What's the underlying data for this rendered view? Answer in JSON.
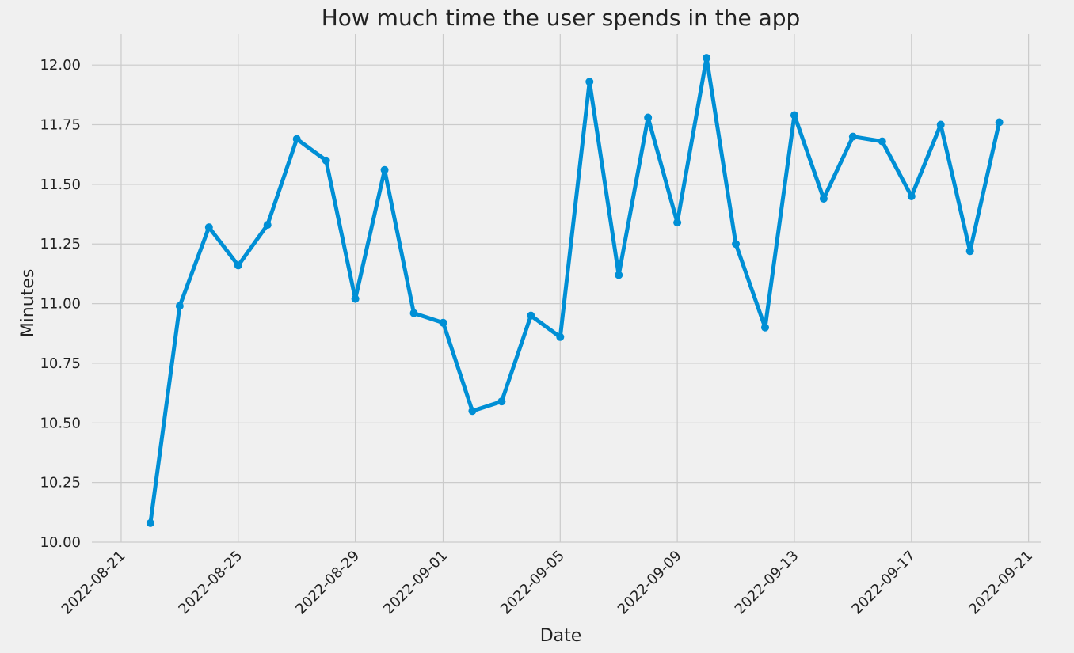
{
  "chart_data": {
    "type": "line",
    "title": "How much time the user spends in the app",
    "xlabel": "Date",
    "ylabel": "Minutes",
    "xlim": [
      "2022-08-20T00:00",
      "2022-09-21T10:00"
    ],
    "ylim": [
      10.0,
      12.13
    ],
    "x_ticks": [
      "2022-08-21",
      "2022-08-25",
      "2022-08-29",
      "2022-09-01",
      "2022-09-05",
      "2022-09-09",
      "2022-09-13",
      "2022-09-17",
      "2022-09-21"
    ],
    "y_ticks": [
      "10.00",
      "10.25",
      "10.50",
      "10.75",
      "11.00",
      "11.25",
      "11.50",
      "11.75",
      "12.00"
    ],
    "grid": true,
    "colors": {
      "series": "#008fd5",
      "background": "#f0f0f0",
      "grid": "#cbcbcb"
    },
    "x": [
      "2022-08-22",
      "2022-08-23",
      "2022-08-24",
      "2022-08-25",
      "2022-08-26",
      "2022-08-27",
      "2022-08-28",
      "2022-08-29",
      "2022-08-30",
      "2022-08-31",
      "2022-09-01",
      "2022-09-02",
      "2022-09-03",
      "2022-09-04",
      "2022-09-05",
      "2022-09-06",
      "2022-09-07",
      "2022-09-08",
      "2022-09-09",
      "2022-09-10",
      "2022-09-11",
      "2022-09-12",
      "2022-09-13",
      "2022-09-14",
      "2022-09-15",
      "2022-09-16",
      "2022-09-17",
      "2022-09-18",
      "2022-09-19",
      "2022-09-20"
    ],
    "series": [
      {
        "values": [
          10.08,
          10.99,
          11.32,
          11.16,
          11.33,
          11.69,
          11.6,
          11.02,
          11.56,
          10.96,
          10.92,
          10.55,
          10.59,
          10.95,
          10.86,
          11.93,
          11.12,
          11.78,
          11.34,
          12.03,
          11.25,
          10.9,
          11.79,
          11.44,
          11.7,
          11.68,
          11.45,
          11.75,
          11.22,
          11.76
        ]
      }
    ]
  }
}
